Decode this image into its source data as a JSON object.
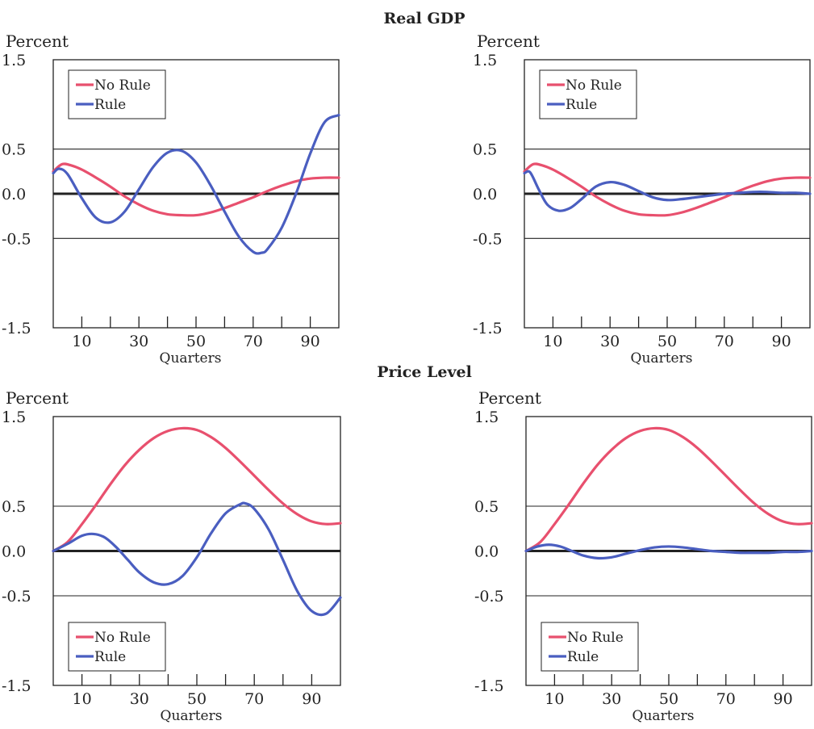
{
  "figure": {
    "sections": [
      {
        "title": "Real GDP"
      },
      {
        "title": "Price Level"
      }
    ]
  },
  "colors": {
    "no_rule": "#e8506e",
    "rule": "#4a5ec0"
  },
  "chart_data": [
    {
      "type": "line",
      "section": "Real GDP",
      "ylabel": "Percent",
      "xlabel": "Quarters",
      "xlim": [
        0,
        100
      ],
      "ylim": [
        -1.5,
        1.5
      ],
      "x_ticks": [
        10,
        30,
        50,
        70,
        90
      ],
      "y_ticks": [
        "1.5",
        "0.5",
        "0.0",
        "-0.5",
        "-1.5"
      ],
      "gridlines": [
        0.5,
        -0.5
      ],
      "legend_position": "top-left",
      "series": [
        {
          "name": "No Rule",
          "color": "#e8506e",
          "x": [
            0,
            3,
            6,
            10,
            15,
            20,
            25,
            30,
            35,
            40,
            45,
            50,
            55,
            60,
            65,
            70,
            75,
            80,
            85,
            90,
            95,
            100
          ],
          "y": [
            0.25,
            0.33,
            0.32,
            0.27,
            0.18,
            0.08,
            -0.03,
            -0.12,
            -0.19,
            -0.23,
            -0.24,
            -0.24,
            -0.21,
            -0.16,
            -0.1,
            -0.04,
            0.03,
            0.09,
            0.14,
            0.17,
            0.18,
            0.18
          ]
        },
        {
          "name": "Rule",
          "color": "#4a5ec0",
          "x": [
            0,
            2,
            5,
            10,
            15,
            20,
            25,
            30,
            35,
            40,
            45,
            50,
            55,
            60,
            65,
            70,
            73,
            75,
            80,
            85,
            90,
            95,
            100
          ],
          "y": [
            0.23,
            0.28,
            0.22,
            -0.05,
            -0.27,
            -0.32,
            -0.2,
            0.05,
            0.3,
            0.46,
            0.48,
            0.35,
            0.1,
            -0.2,
            -0.48,
            -0.65,
            -0.66,
            -0.62,
            -0.38,
            0.0,
            0.45,
            0.8,
            0.88
          ]
        }
      ]
    },
    {
      "type": "line",
      "section": "Real GDP",
      "ylabel": "Percent",
      "xlabel": "Quarters",
      "xlim": [
        0,
        100
      ],
      "ylim": [
        -1.5,
        1.5
      ],
      "x_ticks": [
        10,
        30,
        50,
        70,
        90
      ],
      "y_ticks": [
        "1.5",
        "0.5",
        "0.0",
        "-0.5",
        "-1.5"
      ],
      "gridlines": [
        0.5,
        -0.5
      ],
      "legend_position": "top-left",
      "series": [
        {
          "name": "No Rule",
          "color": "#e8506e",
          "x": [
            0,
            3,
            6,
            10,
            15,
            20,
            25,
            30,
            35,
            40,
            45,
            50,
            55,
            60,
            65,
            70,
            75,
            80,
            85,
            90,
            95,
            100
          ],
          "y": [
            0.25,
            0.33,
            0.32,
            0.27,
            0.18,
            0.08,
            -0.03,
            -0.12,
            -0.19,
            -0.23,
            -0.24,
            -0.24,
            -0.21,
            -0.16,
            -0.1,
            -0.04,
            0.03,
            0.09,
            0.14,
            0.17,
            0.18,
            0.18
          ]
        },
        {
          "name": "Rule",
          "color": "#4a5ec0",
          "x": [
            0,
            2,
            5,
            8,
            12,
            16,
            20,
            25,
            30,
            35,
            40,
            45,
            50,
            55,
            60,
            65,
            70,
            75,
            80,
            85,
            90,
            95,
            100
          ],
          "y": [
            0.23,
            0.24,
            0.05,
            -0.12,
            -0.19,
            -0.16,
            -0.06,
            0.08,
            0.13,
            0.1,
            0.03,
            -0.04,
            -0.07,
            -0.06,
            -0.04,
            -0.02,
            0.0,
            0.01,
            0.02,
            0.02,
            0.01,
            0.01,
            0.0
          ]
        }
      ]
    },
    {
      "type": "line",
      "section": "Price Level",
      "ylabel": "Percent",
      "xlabel": "Quarters",
      "xlim": [
        0,
        100
      ],
      "ylim": [
        -1.5,
        1.5
      ],
      "x_ticks": [
        10,
        30,
        50,
        70,
        90
      ],
      "y_ticks": [
        "1.5",
        "0.5",
        "0.0",
        "-0.5",
        "-1.5"
      ],
      "gridlines": [
        0.5,
        -0.5
      ],
      "legend_position": "bottom-left",
      "series": [
        {
          "name": "No Rule",
          "color": "#e8506e",
          "x": [
            0,
            5,
            10,
            15,
            20,
            25,
            30,
            35,
            40,
            45,
            50,
            55,
            60,
            65,
            70,
            75,
            80,
            85,
            90,
            95,
            100
          ],
          "y": [
            0.0,
            0.1,
            0.3,
            0.52,
            0.75,
            0.96,
            1.13,
            1.26,
            1.34,
            1.37,
            1.35,
            1.27,
            1.15,
            1.0,
            0.84,
            0.68,
            0.53,
            0.41,
            0.33,
            0.3,
            0.31
          ]
        },
        {
          "name": "Rule",
          "color": "#4a5ec0",
          "x": [
            0,
            5,
            10,
            14,
            18,
            22,
            26,
            30,
            35,
            40,
            45,
            50,
            55,
            60,
            65,
            67,
            70,
            75,
            80,
            85,
            90,
            95,
            100
          ],
          "y": [
            0.0,
            0.08,
            0.17,
            0.19,
            0.15,
            0.04,
            -0.1,
            -0.24,
            -0.35,
            -0.37,
            -0.28,
            -0.07,
            0.2,
            0.42,
            0.52,
            0.53,
            0.47,
            0.24,
            -0.1,
            -0.45,
            -0.67,
            -0.7,
            -0.52
          ]
        }
      ]
    },
    {
      "type": "line",
      "section": "Price Level",
      "ylabel": "Percent",
      "xlabel": "Quarters",
      "xlim": [
        0,
        100
      ],
      "ylim": [
        -1.5,
        1.5
      ],
      "x_ticks": [
        10,
        30,
        50,
        70,
        90
      ],
      "y_ticks": [
        "1.5",
        "0.5",
        "0.0",
        "-0.5",
        "-1.5"
      ],
      "gridlines": [
        0.5,
        -0.5
      ],
      "legend_position": "bottom-left",
      "series": [
        {
          "name": "No Rule",
          "color": "#e8506e",
          "x": [
            0,
            5,
            10,
            15,
            20,
            25,
            30,
            35,
            40,
            45,
            50,
            55,
            60,
            65,
            70,
            75,
            80,
            85,
            90,
            95,
            100
          ],
          "y": [
            0.0,
            0.1,
            0.3,
            0.52,
            0.75,
            0.96,
            1.13,
            1.26,
            1.34,
            1.37,
            1.35,
            1.27,
            1.15,
            1.0,
            0.84,
            0.68,
            0.53,
            0.41,
            0.33,
            0.3,
            0.31
          ]
        },
        {
          "name": "Rule",
          "color": "#4a5ec0",
          "x": [
            0,
            4,
            8,
            12,
            16,
            20,
            25,
            30,
            35,
            40,
            45,
            50,
            55,
            60,
            65,
            70,
            75,
            80,
            85,
            90,
            95,
            100
          ],
          "y": [
            0.0,
            0.05,
            0.07,
            0.05,
            0.0,
            -0.05,
            -0.08,
            -0.07,
            -0.03,
            0.01,
            0.04,
            0.05,
            0.04,
            0.02,
            0.0,
            -0.01,
            -0.02,
            -0.02,
            -0.02,
            -0.01,
            -0.01,
            0.0
          ]
        }
      ]
    }
  ]
}
